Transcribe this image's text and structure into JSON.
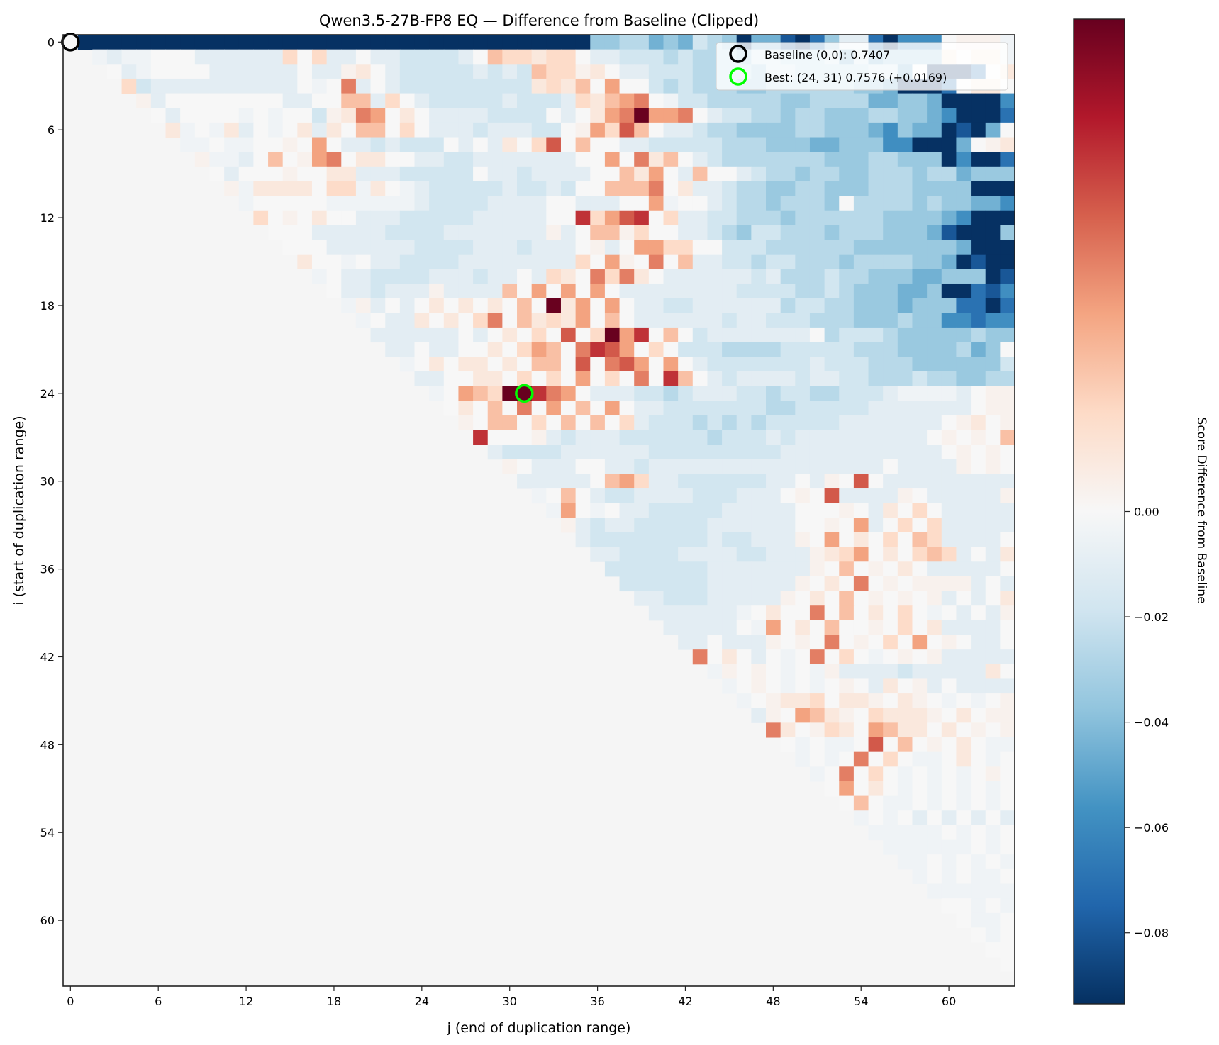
{
  "chart_data": {
    "type": "heatmap",
    "title": "Qwen3.5-27B-FP8 EQ — Difference from Baseline (Clipped)",
    "xlabel": "j (end of duplication range)",
    "ylabel": "i (start of duplication range)",
    "x_ticks": [
      0,
      6,
      12,
      18,
      24,
      30,
      36,
      42,
      48,
      54,
      60
    ],
    "y_ticks": [
      0,
      6,
      12,
      18,
      24,
      30,
      36,
      42,
      48,
      54,
      60
    ],
    "x_range": [
      -0.5,
      64.5
    ],
    "y_range": [
      -0.5,
      64.5
    ],
    "grid": false,
    "colormap": "RdBu_r",
    "color_limits": [
      -0.0935,
      0.0935
    ],
    "colorbar": {
      "label": "Score Difference from Baseline",
      "ticks": [
        0.0,
        -0.02,
        -0.04,
        -0.06,
        -0.08
      ],
      "tick_labels": [
        "0.00",
        "−0.02",
        "−0.04",
        "−0.06",
        "−0.08"
      ]
    },
    "legend": {
      "placement": "top-right",
      "entries": [
        {
          "label": "Baseline (0,0): 0.7407",
          "marker": "black-ring",
          "color": "#000000"
        },
        {
          "label": "Best: (24, 31) 0.7576 (+0.0169)",
          "marker": "green-ring",
          "color": "#00ff00"
        }
      ]
    },
    "markers": [
      {
        "name": "baseline",
        "i": 0,
        "j": 0,
        "score": 0.7407,
        "color": "#000000"
      },
      {
        "name": "best",
        "i": 24,
        "j": 31,
        "score": 0.7576,
        "delta": 0.0169,
        "color": "#00ff00"
      }
    ],
    "value_codes": {
      ".": 0.0,
      "a": -0.004,
      "b": -0.01,
      "c": -0.018,
      "d": -0.026,
      "e": -0.035,
      "f": -0.045,
      "g": -0.058,
      "h": -0.07,
      "i": -0.08,
      "j": -0.093,
      "1": 0.004,
      "2": 0.01,
      "3": 0.018,
      "4": 0.028,
      "5": 0.038,
      "6": 0.048,
      "7": 0.058,
      "8": 0.068,
      "9": 0.093
    },
    "cells_note": "row i lists values for columns j = i+1 .. 64 (row 0: j = 1 .. 64)",
    "rows": [
      "jjjjjjjjjjjjjjjjjjjjjjjjjjjjjjjjjjjeeddfefcdejffijhebbhjggg.111a",
      "abaa...bbbbbb3.3bb.bbccccb.433233.bbcccdcdddeccdddcfcfeeee2.22a",
      ".ba....bbbbbb.bb12.bcccccbcbc43312.bbcccddddeccdddddccf.jjjh.21a",
      "3cbbbbbbbbbb.a.6b.bccccccccc2324.5..cdcdddeeddddddeefjjjh.22.",
      "1b........bb..44b3.bcccccbcccb32456.accdddddeeddddffeefjjjjg.22b",
      ".b....a.a..c1265.2.bbbbcccc.b.2569556.bccddeddeeeddeefgjjjh.21b",
      "2a.a2b.a.2b2.44.3.bbbcbbbcc.15374.bbcddeeeeddeeefgeffjijf.22.",
      "aa.aa..1.5.bbcbccc.b.b2.37.4..bbcccccdddeeeffeeeggjjjf.12a",
      "1aab.4.156.22..bbccbbbbbbb..5.624.bcdddddddeeeddeeejgjjhb.22.",
      ".b...1..22bbbccccc.bbcbbbb..425.b4..bcddeddeedddeddfeeejjjj.21.",
      "1a2222.33a2.abcccccbccbc..4446.2bbcddeeddeeedddeeeejjjjf.21b",
      "a.....aaaaaabccccbbbb..bbb..5a..bcddeddde.ddddedeeffgggg2.21c",
      "3.1.2..bbbcccccbbbbb..83578.3bbccdddeddddddeeeefgjjjjf.a21c",
      "...bbbbbccccbbbbbbb1b.4413..bbcdeccdddedddeeefijjje.a.22c",
      "...bbbbbbccccbbbcbbb.1b.5533..cccddddddeeeeeeefjjjihe.a.22c",
      "2..a.bbccccbbbbbbbb3.51.6.4bbccdccdddeddddeefjijjjd.a224c",
      "a.bbccccbbbcbb.b32.6362.bbbbbbcbdddcddeeeffeeejijhf.a.23b",
      ".bbcbbb1bbbb4.5.5.5.bbbbbbbbccccddcdeeeffejjhiggga.24b",
      "a1b.b.2.2.2.4.925.5.bbccbbbbbbdccddeeefeeehhjhgga.2.12b",
      "a.bb2.2.36.42325.4.bbbbbbcbbcccdddeeedeegghgggb.211.",
      "bbbbbb.b.2.3.7.3958.4.cbbbbbbb.dcccdeeeeedeefgbcba.3112",
      "bb.bb..2.354.6875.3.cccddddcccccdddeeeedfe.bcaab.4112",
      "a.2.22.2.44.7.675.5.bcccccccbcccdddeeeeeeccbbbcbb.3122",
      "bb..22.3.3.5.3.6.84.bcbbbbcbbccdddcddeeddccbbb.bb.212",
      "a.54397865.bbbccdcbbbccdccddcccbaaaab.111.212",
      ".2.4.6.5.4.5.bbcccccccddcccccbbbbbbb.111.2111",
      "1.44.3.4.4.3bcccdcdcdcccccbbbbbbb.12.1212",
      "8...1bcbbbccccccdcccbcbbbbbbbbb.1.1.42",
      "bccccbbbbbbcccccccccbbbbbbbbbbb.1.1.412",
      "1.bbb..bbcbbbbbbbbbbbbbbbb.bbbb1.1.13",
      "bbbbb.453bbccccccbb.b1.7.bbbbbbbbb.2.14",
      "a.4.bccbbbbcccbbb.1.7bbbb1.bbbbb1.21.3",
      "a5.a.bbcccccbbbbb...1.b2.3.bbbbb.111.",
      "1bcbbcccccbbbbbb..1.5b.3.3bbbbb11111",
      "bccccccccbccbbb1.5.2.3.43bbbb..2111",
      "bbccccbbbbccbbb1235.2.343b.b22.211",
      "cccccccbbbbbbb1.4.1.2.bbbbb.13.11",
      "ccccccbbbbbb1.2.6.1.1111b.b2.b.1",
      "bbcccbbbbb1.2.4.1.1.1b.b.2.3.1",
      "bbbbbba.2..6.4.2.3.a.b.b1.3.1",
      "bbbbb.a5.2.4..1.3.2bbbb.1.3.1",
      "bb.bbb1.1.6.1.3.5.1.bb.b2.2.",
      "6.2.b.a.6.3.a.1.1bbbbb1.3.11",
      "a1.1.a.a1bbbbcbbbbb2.11.1",
      "a.1.a.a.1.b2.1b.bbbb1.2.1",
      "a.1223.221.21.a.a.1.1.21",
      "b1.5421.32221.2.112.2.1",
      "62.132.5422.2.1.11.12.1",
      ".a.aa.7.4.1.2.aa.a.2.1.1",
      "a.a.6.3.aa.2.a.a.2.1.1",
      "a.6.3.a.a.a.1.a.2.a1",
      ".5.2.a.a.a.a.a.a.a.1",
      ".4.aa.a.a.a.a.a.a.1",
      "a.a.b.b.b.b.a.a.a1",
      "aaaaa.a.a.a.a.a.1",
      "aaaaaa.a.a.a..a1",
      "aa.a.a.a.a.a.ab",
      "a.a.aa.a.a.a.a",
      "aaaaaa.a.a.aa",
      "..a.a.a.a.af",
      ".aa.a.a.ag",
      ".a.a.a.d",
      "..a.ah",
      ".ah",
      "j"
    ]
  }
}
